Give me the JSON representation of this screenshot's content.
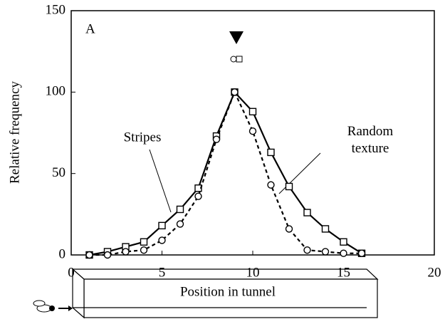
{
  "chart_data": {
    "type": "line",
    "panel_label": "A",
    "y_label": "Relative frequency",
    "x_label": "Position in tunnel",
    "x": [
      1,
      2,
      3,
      4,
      5,
      6,
      7,
      8,
      9,
      10,
      11,
      12,
      13,
      14,
      15,
      16
    ],
    "series": [
      {
        "name": "Stripes",
        "color": "#000",
        "marker": "square",
        "dash": false,
        "values": [
          0,
          2,
          5,
          8,
          18,
          28,
          41,
          73,
          100,
          88,
          63,
          42,
          26,
          16,
          8,
          1
        ]
      },
      {
        "name": "Random texture",
        "color": "#000",
        "marker": "circle",
        "dash": true,
        "values": [
          0,
          0,
          2,
          3,
          9,
          19,
          36,
          71,
          100,
          76,
          43,
          16,
          3,
          2,
          1,
          1
        ]
      }
    ],
    "xlim": [
      0,
      20
    ],
    "xticks": [
      0,
      5,
      10,
      15,
      20
    ],
    "ylim": [
      0,
      150
    ],
    "yticks": [
      0,
      50,
      100,
      150
    ],
    "grid": false
  }
}
